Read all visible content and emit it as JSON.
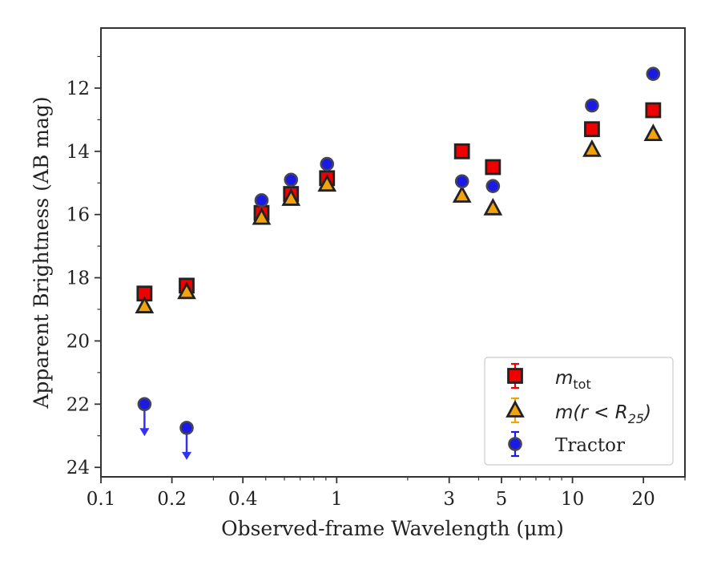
{
  "colors": {
    "mtot": "#ee0000",
    "mr25": "#f2a20c",
    "tractor": "#1a1ae6",
    "edge": "#222222",
    "tractor_edge": "#444455",
    "upper_limit_arrow": "#3333ee",
    "frame": "#333333"
  },
  "chart_data": {
    "type": "scatter",
    "xlabel": "Observed-frame Wavelength (μm)",
    "ylabel": "Apparent Brightness (AB mag)",
    "xscale": "log",
    "xlim": [
      0.1,
      30
    ],
    "ylim": [
      24.3,
      10.1
    ],
    "y_inverted": true,
    "grid": false,
    "legend_position": "lower-right",
    "x_ticks": [
      {
        "value": 0.1,
        "label": "0.1"
      },
      {
        "value": 0.2,
        "label": "0.2"
      },
      {
        "value": 0.4,
        "label": "0.4"
      },
      {
        "value": 1,
        "label": "1"
      },
      {
        "value": 3,
        "label": "3"
      },
      {
        "value": 5,
        "label": "5"
      },
      {
        "value": 10,
        "label": "10"
      },
      {
        "value": 20,
        "label": "20"
      }
    ],
    "y_ticks": [
      {
        "value": 12,
        "label": "12"
      },
      {
        "value": 14,
        "label": "14"
      },
      {
        "value": 16,
        "label": "16"
      },
      {
        "value": 18,
        "label": "18"
      },
      {
        "value": 20,
        "label": "20"
      },
      {
        "value": 22,
        "label": "22"
      },
      {
        "value": 24,
        "label": "24"
      }
    ],
    "series": [
      {
        "key": "mtot",
        "legend_main": "m",
        "legend_sub": "tot",
        "marker": "square",
        "points": [
          {
            "x": 0.153,
            "y": 18.5
          },
          {
            "x": 0.231,
            "y": 18.25
          },
          {
            "x": 0.48,
            "y": 15.95
          },
          {
            "x": 0.64,
            "y": 15.35
          },
          {
            "x": 0.91,
            "y": 14.85
          },
          {
            "x": 3.4,
            "y": 14.0
          },
          {
            "x": 4.6,
            "y": 14.5
          },
          {
            "x": 12.1,
            "y": 13.3
          },
          {
            "x": 22.0,
            "y": 12.7
          }
        ]
      },
      {
        "key": "mr25",
        "legend_main": "m(r < R",
        "legend_sub": "25",
        "legend_tail": ")",
        "marker": "triangle",
        "points": [
          {
            "x": 0.153,
            "y": 18.9
          },
          {
            "x": 0.231,
            "y": 18.45
          },
          {
            "x": 0.48,
            "y": 16.1
          },
          {
            "x": 0.64,
            "y": 15.5
          },
          {
            "x": 0.91,
            "y": 15.05
          },
          {
            "x": 3.4,
            "y": 15.4
          },
          {
            "x": 4.6,
            "y": 15.8
          },
          {
            "x": 12.1,
            "y": 13.95
          },
          {
            "x": 22.0,
            "y": 13.45
          }
        ]
      },
      {
        "key": "tractor",
        "legend_main": "Tractor",
        "marker": "circle",
        "points": [
          {
            "x": 0.153,
            "y": 22.0,
            "upper_limit": true
          },
          {
            "x": 0.231,
            "y": 22.75,
            "upper_limit": true
          },
          {
            "x": 0.48,
            "y": 15.55
          },
          {
            "x": 0.64,
            "y": 14.9
          },
          {
            "x": 0.91,
            "y": 14.4
          },
          {
            "x": 3.4,
            "y": 14.95
          },
          {
            "x": 4.6,
            "y": 15.1
          },
          {
            "x": 12.1,
            "y": 12.55
          },
          {
            "x": 22.0,
            "y": 11.55
          }
        ]
      }
    ]
  }
}
